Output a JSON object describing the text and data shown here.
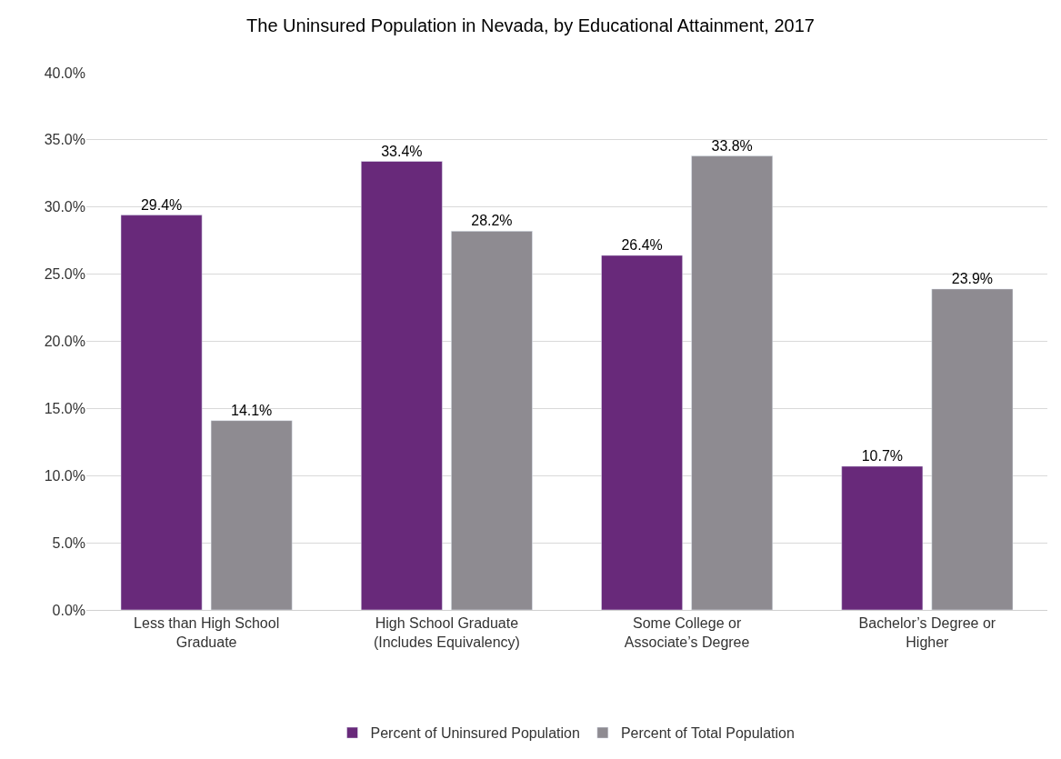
{
  "chart_data": {
    "type": "bar",
    "title": "The Uninsured Population in Nevada, by Educational Attainment, 2017",
    "categories": [
      "Less than High School Graduate",
      "High School Graduate (Includes Equivalency)",
      "Some College or Associate’s Degree",
      "Bachelor’s Degree or Higher"
    ],
    "series": [
      {
        "name": "Percent of Uninsured Population",
        "color": "#68297a",
        "values": [
          29.4,
          33.4,
          26.4,
          10.7
        ],
        "value_labels": [
          "29.4%",
          "33.4%",
          "26.4%",
          "10.7%"
        ]
      },
      {
        "name": "Percent of Total Population",
        "color": "#8e8b91",
        "values": [
          14.1,
          28.2,
          33.8,
          23.9
        ],
        "value_labels": [
          "14.1%",
          "28.2%",
          "33.8%",
          "23.9%"
        ]
      }
    ],
    "ylim": [
      0,
      40
    ],
    "yticks": [
      {
        "value": 0,
        "label": "0.0%"
      },
      {
        "value": 5,
        "label": "5.0%"
      },
      {
        "value": 10,
        "label": "10.0%"
      },
      {
        "value": 15,
        "label": "15.0%"
      },
      {
        "value": 20,
        "label": "20.0%"
      },
      {
        "value": 25,
        "label": "25.0%"
      },
      {
        "value": 30,
        "label": "30.0%"
      },
      {
        "value": 35,
        "label": "35.0%"
      },
      {
        "value": 40,
        "label": "40.0%"
      }
    ],
    "grid": "y",
    "legend": "bottom"
  }
}
